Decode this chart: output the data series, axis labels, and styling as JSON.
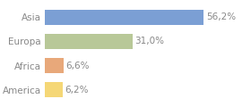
{
  "categories": [
    "America",
    "Africa",
    "Europa",
    "Asia"
  ],
  "values": [
    6.2,
    6.6,
    31.0,
    56.2
  ],
  "labels": [
    "6,2%",
    "6,6%",
    "31,0%",
    "56,2%"
  ],
  "bar_colors": [
    "#f5d776",
    "#e8a87a",
    "#b8c898",
    "#7b9fd4"
  ],
  "background_color": "#ffffff",
  "xlim": [
    0,
    72
  ],
  "bar_height": 0.65,
  "label_fontsize": 7.5,
  "tick_fontsize": 7.5,
  "gridline_color": "#dddddd",
  "text_color": "#888888"
}
